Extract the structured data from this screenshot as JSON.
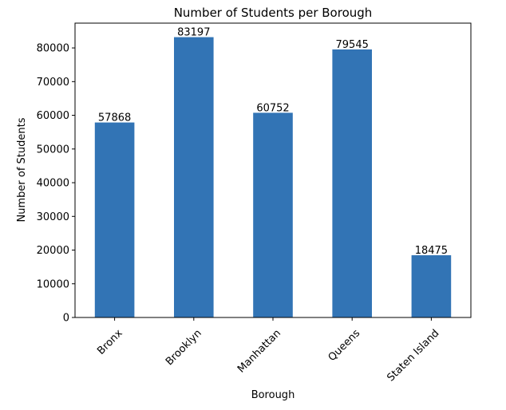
{
  "chart_data": {
    "type": "bar",
    "title": "Number of Students per Borough",
    "xlabel": "Borough",
    "ylabel": "Number of Students",
    "categories": [
      "Bronx",
      "Brooklyn",
      "Manhattan",
      "Queens",
      "Staten Island"
    ],
    "values": [
      57868,
      83197,
      60752,
      79545,
      18475
    ],
    "data_labels": [
      "57868",
      "83197",
      "60752",
      "79545",
      "18475"
    ],
    "y_ticks": [
      0,
      10000,
      20000,
      30000,
      40000,
      50000,
      60000,
      70000,
      80000
    ],
    "ylim": [
      0,
      87357
    ],
    "grid": false,
    "legend": "none",
    "bar_color": "#3274b5"
  }
}
